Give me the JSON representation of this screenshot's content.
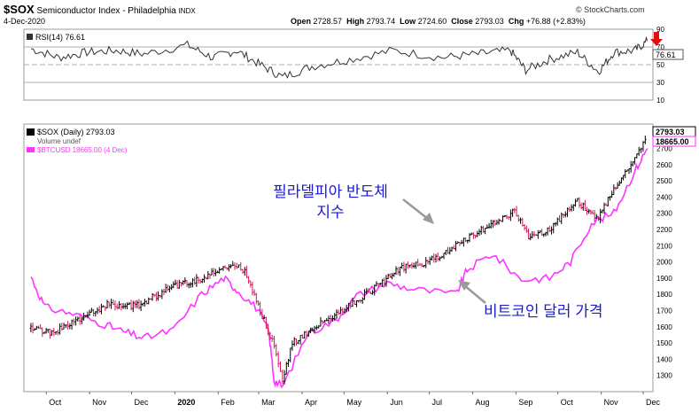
{
  "header": {
    "symbol": "$SOX",
    "name": "Semiconductor Index - Philadelphia",
    "exchange": "INDX",
    "date": "4-Dec-2020",
    "watermark": "© StockCharts.com",
    "open_label": "Open",
    "open": "2728.57",
    "high_label": "High",
    "high": "2793.74",
    "low_label": "Low",
    "low": "2724.60",
    "close_label": "Close",
    "close": "2793.03",
    "chg_label": "Chg",
    "chg": "+76.88 (+2.83%)"
  },
  "rsi_panel": {
    "label": "RSI(14) 76.61",
    "current_value": "76.61",
    "axis_ticks": [
      "90",
      "70",
      "50",
      "30",
      "10"
    ]
  },
  "price_panel": {
    "legend": [
      "$SOX (Daily) 2793.03",
      "Volume undef",
      "$BTCUSD 18665.00 (4 Dec)"
    ],
    "last_sox": "2793.03",
    "last_btc": "18665.00"
  },
  "annotations": {
    "sox_label": [
      "필라델피아 반도체",
      "지수"
    ],
    "btc_label": "비트코인 달러 가격"
  },
  "colors": {
    "sox_up": "#000000",
    "sox_down": "#d4145a",
    "btc": "#ff33ff",
    "annotation_text": "#1a1ad4",
    "rsi_line": "#333333"
  },
  "chart_data": [
    {
      "type": "line",
      "title": "RSI(14) 76.61",
      "ylim": [
        10,
        90
      ],
      "yticks": [
        90,
        70,
        50,
        30,
        10
      ],
      "reference_lines": [
        70,
        50,
        30
      ],
      "series": [
        {
          "name": "RSI(14)",
          "x": [
            "2019-09-20",
            "2019-10-10",
            "2019-10-30",
            "2019-11-20",
            "2019-12-10",
            "2020-01-10",
            "2020-01-28",
            "2020-02-14",
            "2020-03-02",
            "2020-03-18",
            "2020-04-08",
            "2020-05-05",
            "2020-06-05",
            "2020-07-10",
            "2020-08-05",
            "2020-08-28",
            "2020-09-08",
            "2020-09-25",
            "2020-10-15",
            "2020-10-30",
            "2020-11-10",
            "2020-11-25",
            "2020-12-04"
          ],
          "values": [
            68,
            58,
            64,
            66,
            62,
            72,
            58,
            66,
            50,
            36,
            48,
            56,
            66,
            58,
            62,
            66,
            44,
            56,
            64,
            42,
            64,
            66,
            76.61
          ]
        }
      ]
    },
    {
      "type": "line",
      "title": "",
      "ylim": [
        1200,
        2850
      ],
      "yticks": [
        1300,
        1400,
        1500,
        1600,
        1700,
        1800,
        1900,
        2000,
        2100,
        2200,
        2300,
        2400,
        2500,
        2600,
        2700
      ],
      "xticks": [
        "Oct",
        "Nov",
        "Dec",
        "2020",
        "Feb",
        "Mar",
        "Apr",
        "May",
        "Jun",
        "Jul",
        "Aug",
        "Sep",
        "Oct",
        "Nov",
        "Dec"
      ],
      "series": [
        {
          "name": "$SOX (Daily) 2793.03",
          "x": [
            "2019-09-20",
            "2019-10-05",
            "2019-10-25",
            "2019-11-15",
            "2019-12-05",
            "2019-12-31",
            "2020-01-22",
            "2020-02-10",
            "2020-02-20",
            "2020-03-02",
            "2020-03-12",
            "2020-03-18",
            "2020-03-25",
            "2020-04-10",
            "2020-04-30",
            "2020-05-20",
            "2020-06-10",
            "2020-06-30",
            "2020-07-20",
            "2020-08-10",
            "2020-08-31",
            "2020-09-10",
            "2020-09-25",
            "2020-10-15",
            "2020-10-30",
            "2020-11-10",
            "2020-11-25",
            "2020-12-04"
          ],
          "values": [
            1590,
            1560,
            1650,
            1740,
            1730,
            1850,
            1900,
            1980,
            1950,
            1700,
            1480,
            1260,
            1500,
            1600,
            1700,
            1820,
            1960,
            2000,
            2100,
            2210,
            2310,
            2160,
            2200,
            2370,
            2270,
            2450,
            2640,
            2793.03
          ]
        },
        {
          "name": "$BTCUSD 18665.00 (4 Dec)",
          "x": [
            "2019-09-20",
            "2019-09-30",
            "2019-10-20",
            "2019-11-10",
            "2019-11-25",
            "2019-12-10",
            "2019-12-31",
            "2020-01-20",
            "2020-02-05",
            "2020-02-14",
            "2020-02-28",
            "2020-03-08",
            "2020-03-12",
            "2020-03-18",
            "2020-04-05",
            "2020-04-25",
            "2020-05-10",
            "2020-06-01",
            "2020-06-20",
            "2020-07-20",
            "2020-07-28",
            "2020-08-15",
            "2020-09-05",
            "2020-09-25",
            "2020-10-10",
            "2020-10-25",
            "2020-11-10",
            "2020-11-25",
            "2020-12-04"
          ],
          "values": [
            1910,
            1720,
            1680,
            1620,
            1570,
            1530,
            1580,
            1800,
            1900,
            1830,
            1720,
            1580,
            1270,
            1230,
            1560,
            1640,
            1790,
            1870,
            1830,
            1800,
            1950,
            2050,
            1890,
            1900,
            2000,
            2240,
            2300,
            2560,
            2700
          ]
        }
      ]
    }
  ]
}
